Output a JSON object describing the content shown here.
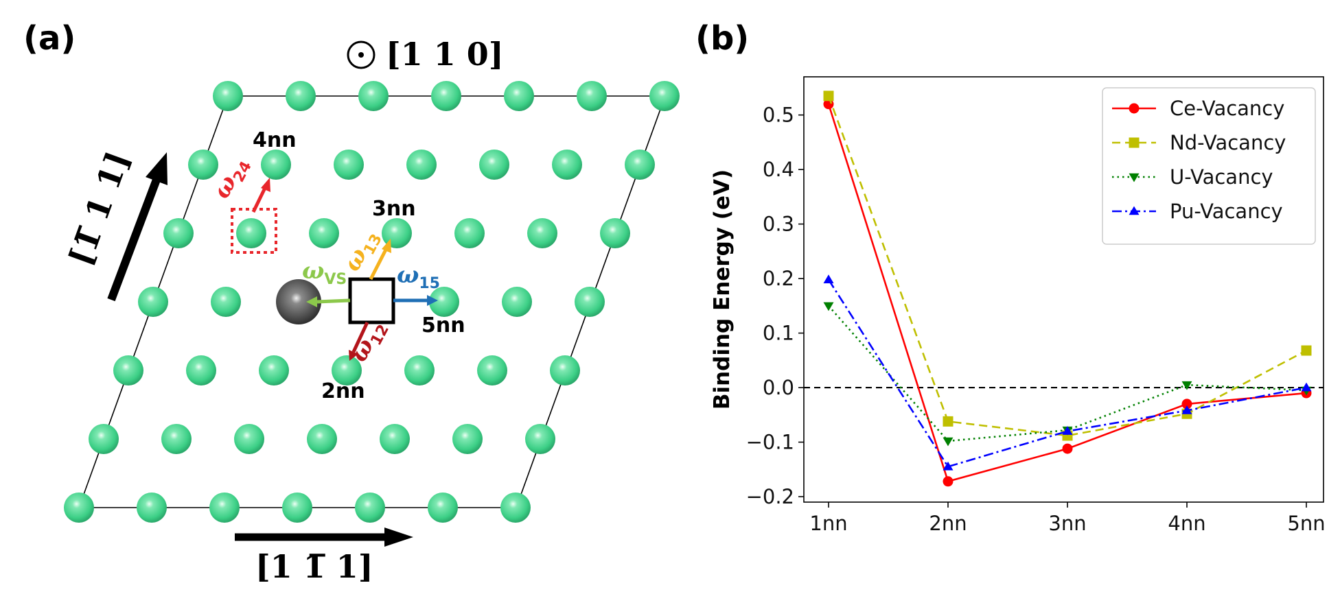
{
  "panel_a": {
    "label": "(a)",
    "top_direction": "[1 1 0]",
    "left_direction": "[1̅ 1 1]",
    "bottom_direction": "[1 1̅ 1]",
    "neighbors": {
      "n2": "2nn",
      "n3": "3nn",
      "n4": "4nn",
      "n5": "5nn"
    },
    "jumps": [
      {
        "sym": "ω",
        "sub": "24",
        "color": "#e8262b"
      },
      {
        "sym": "ω",
        "sub": "13",
        "color": "#f5b21e"
      },
      {
        "sym": "ω",
        "sub": "15",
        "color": "#1f6fb5"
      },
      {
        "sym": "ω",
        "sub": "VS",
        "color": "#8cc84b"
      },
      {
        "sym": "ω",
        "sub": "12",
        "color": "#b3151b"
      }
    ],
    "colors": {
      "atom": "#3ccf86",
      "solute": "#4a4a4a",
      "vacancy": "#000000",
      "dotted_vacancy": "#e8262b"
    }
  },
  "panel_b": {
    "label": "(b)"
  },
  "chart_data": {
    "type": "line",
    "categories": [
      "1nn",
      "2nn",
      "3nn",
      "4nn",
      "5nn"
    ],
    "xlabel": "",
    "ylabel": "Binding Energy (eV)",
    "ylim": [
      -0.21,
      0.57
    ],
    "yticks": [
      "−0.2",
      "−0.1",
      "0.0",
      "0.1",
      "0.2",
      "0.3",
      "0.4",
      "0.5"
    ],
    "reference_line": 0.0,
    "legend_position": "top-right",
    "grid": false,
    "series": [
      {
        "name": "Ce-Vacancy",
        "values": [
          0.52,
          -0.172,
          -0.112,
          -0.03,
          -0.01
        ],
        "color": "#ff0000",
        "dash": "",
        "marker": "circle"
      },
      {
        "name": "Nd-Vacancy",
        "values": [
          0.535,
          -0.062,
          -0.088,
          -0.048,
          0.068
        ],
        "color": "#bfbf00",
        "dash": "12 7",
        "marker": "square"
      },
      {
        "name": "U-Vacancy",
        "values": [
          0.15,
          -0.098,
          -0.078,
          0.005,
          -0.005
        ],
        "color": "#008000",
        "dash": "2.5 5",
        "marker": "triangle-down"
      },
      {
        "name": "Pu-Vacancy",
        "values": [
          0.198,
          -0.145,
          -0.08,
          -0.042,
          0.0
        ],
        "color": "#0000ff",
        "dash": "14 5 3 5",
        "marker": "triangle-up"
      }
    ]
  }
}
